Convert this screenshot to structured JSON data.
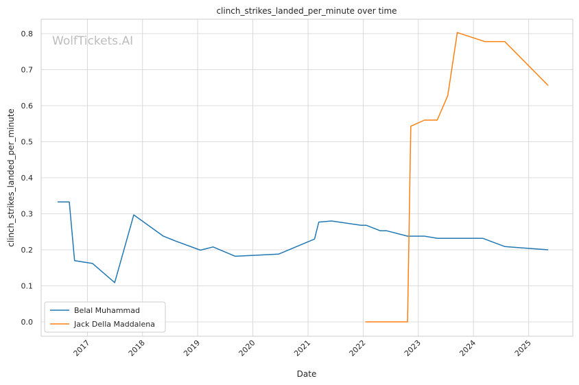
{
  "chart_data": {
    "type": "line",
    "title": "clinch_strikes_landed_per_minute over time",
    "xlabel": "Date",
    "ylabel": "clinch_strikes_landed_per_minute",
    "watermark": "WolfTickets.AI",
    "xlim": [
      "2016-03-01",
      "2025-10-20"
    ],
    "ylim": [
      -0.04,
      0.84
    ],
    "x_ticks": [
      "2017",
      "2018",
      "2019",
      "2020",
      "2021",
      "2022",
      "2023",
      "2024",
      "2025"
    ],
    "y_ticks": [
      "0.0",
      "0.1",
      "0.2",
      "0.3",
      "0.4",
      "0.5",
      "0.6",
      "0.7",
      "0.8"
    ],
    "grid": true,
    "legend_position": "lower-left",
    "series": [
      {
        "name": "Belal Muhammad",
        "color": "#1f77b4",
        "points": [
          {
            "x": "2016-06-18",
            "y": 0.333
          },
          {
            "x": "2016-09-03",
            "y": 0.333
          },
          {
            "x": "2016-10-08",
            "y": 0.17
          },
          {
            "x": "2017-02-04",
            "y": 0.162
          },
          {
            "x": "2017-07-01",
            "y": 0.109
          },
          {
            "x": "2017-11-04",
            "y": 0.297
          },
          {
            "x": "2018-05-19",
            "y": 0.238
          },
          {
            "x": "2018-08-04",
            "y": 0.225
          },
          {
            "x": "2019-01-19",
            "y": 0.199
          },
          {
            "x": "2019-04-13",
            "y": 0.208
          },
          {
            "x": "2019-09-07",
            "y": 0.182
          },
          {
            "x": "2020-06-20",
            "y": 0.188
          },
          {
            "x": "2021-02-13",
            "y": 0.23
          },
          {
            "x": "2021-03-13",
            "y": 0.277
          },
          {
            "x": "2021-06-05",
            "y": 0.28
          },
          {
            "x": "2021-12-18",
            "y": 0.268
          },
          {
            "x": "2022-01-22",
            "y": 0.268
          },
          {
            "x": "2022-04-23",
            "y": 0.253
          },
          {
            "x": "2022-06-04",
            "y": 0.253
          },
          {
            "x": "2022-10-22",
            "y": 0.238
          },
          {
            "x": "2023-02-11",
            "y": 0.238
          },
          {
            "x": "2023-05-06",
            "y": 0.232
          },
          {
            "x": "2024-03-02",
            "y": 0.232
          },
          {
            "x": "2024-07-27",
            "y": 0.209
          },
          {
            "x": "2025-05-10",
            "y": 0.2
          }
        ]
      },
      {
        "name": "Jack Della Maddalena",
        "color": "#ff7f0e",
        "points": [
          {
            "x": "2022-01-15",
            "y": 0.0
          },
          {
            "x": "2022-10-22",
            "y": 0.0
          },
          {
            "x": "2022-11-12",
            "y": 0.543
          },
          {
            "x": "2023-02-11",
            "y": 0.56
          },
          {
            "x": "2023-05-06",
            "y": 0.56
          },
          {
            "x": "2023-07-15",
            "y": 0.628
          },
          {
            "x": "2023-09-16",
            "y": 0.803
          },
          {
            "x": "2024-03-16",
            "y": 0.778
          },
          {
            "x": "2024-07-27",
            "y": 0.778
          },
          {
            "x": "2025-05-10",
            "y": 0.656
          }
        ]
      }
    ]
  }
}
